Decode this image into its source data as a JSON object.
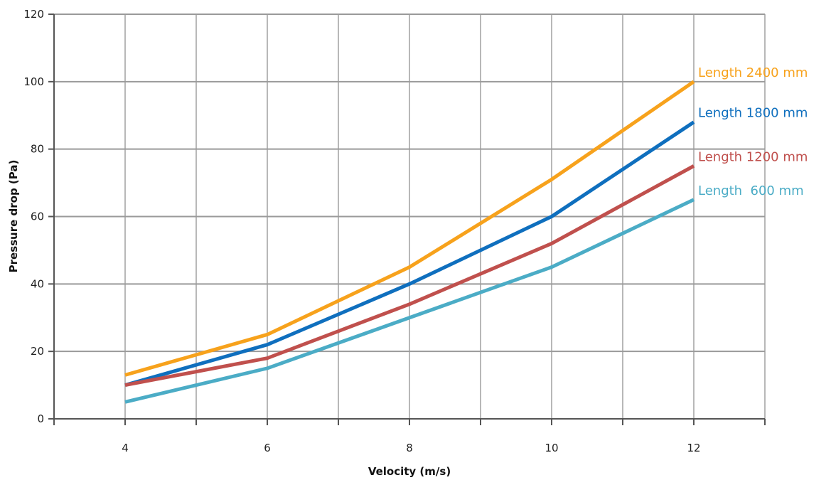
{
  "chart_data": {
    "type": "line",
    "title": "",
    "xlabel": "Velocity (m/s)",
    "ylabel": "Pressure drop (Pa)",
    "xlim": [
      3,
      13
    ],
    "ylim": [
      0,
      120
    ],
    "x_ticks": [
      4,
      6,
      8,
      10,
      12
    ],
    "y_ticks": [
      0,
      20,
      40,
      60,
      80,
      100,
      120
    ],
    "grid": true,
    "legend": "right-end labels",
    "x": [
      4,
      6,
      8,
      10,
      12
    ],
    "series": [
      {
        "name": "Length 2400 mm",
        "color": "#f7a21c",
        "values": [
          13,
          25,
          45,
          71,
          100
        ]
      },
      {
        "name": "Length 1800 mm",
        "color": "#0f6fbe",
        "values": [
          10,
          22,
          40,
          60,
          88
        ]
      },
      {
        "name": "Length 1200 mm",
        "color": "#c0504d",
        "values": [
          10,
          18,
          34,
          52,
          75
        ]
      },
      {
        "name": "Length  600 mm",
        "color": "#4bacc6",
        "values": [
          5,
          15,
          30,
          45,
          65
        ]
      }
    ]
  }
}
